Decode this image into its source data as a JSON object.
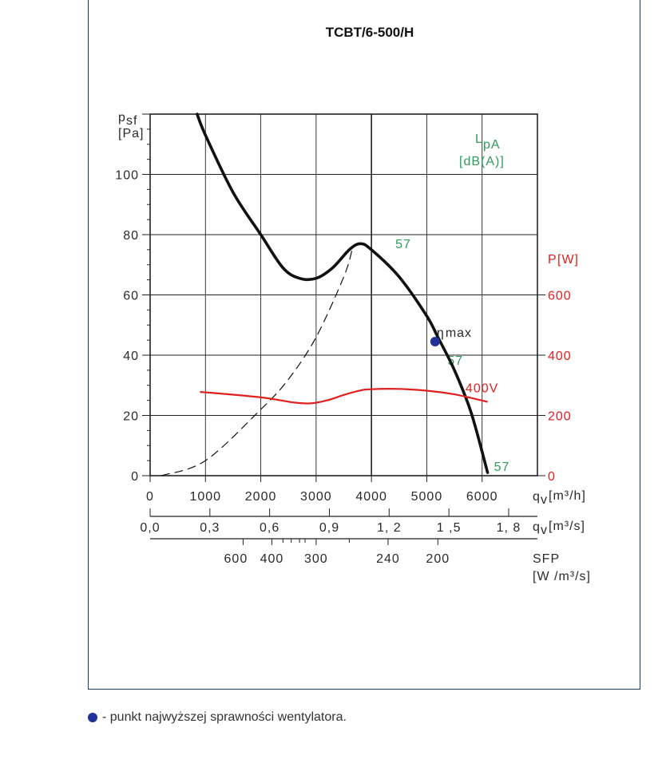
{
  "chart_data": {
    "type": "line",
    "title": "TCBT/6-500/H",
    "y_label_main": "p",
    "y_label_sub": "sf",
    "y_unit": "[Pa]",
    "x_label_main": "q",
    "x_label_sub": "v",
    "x_unit_m3h": "[m³/h]",
    "x_unit_m3s": "[m³/s]",
    "x_range": [
      0,
      7000
    ],
    "y_range": [
      0,
      120
    ],
    "y_ticks": [
      "0",
      "20",
      "40",
      "60",
      "80",
      "100"
    ],
    "x_ticks_m3h": [
      "0",
      "1000",
      "2000",
      "3000",
      "4000",
      "5000",
      "6000"
    ],
    "x_ticks_m3s": [
      "0,0",
      "0,3",
      "0,6",
      "0,9",
      "1, 2",
      "1 ,5",
      "1, 8"
    ],
    "sfp_ticks": [
      "600",
      "400",
      "300",
      "240",
      "200"
    ],
    "sfp_label": "SFP",
    "sfp_unit": "[W /m³/s]",
    "power_axis_label": "P",
    "power_axis_unit": "[W]",
    "power_ticks": [
      "0",
      "200",
      "400",
      "600"
    ],
    "lpa_label": "L",
    "lpa_sub": "pA",
    "lpa_unit": "[dB(A)]",
    "series": [
      {
        "kind": "pressure",
        "values": [
          [
            850,
            120
          ],
          [
            1000,
            113
          ],
          [
            1500,
            94
          ],
          [
            2000,
            80
          ],
          [
            2400,
            69
          ],
          [
            2700,
            65.5
          ],
          [
            3000,
            65.5
          ],
          [
            3300,
            69
          ],
          [
            3600,
            75
          ],
          [
            3800,
            77
          ],
          [
            4000,
            75
          ],
          [
            4500,
            66
          ],
          [
            5000,
            53
          ],
          [
            5200,
            46
          ],
          [
            5500,
            35
          ],
          [
            5800,
            21
          ],
          [
            6100,
            1
          ]
        ]
      },
      {
        "kind": "system-curve",
        "values": [
          [
            200,
            0
          ],
          [
            1000,
            5
          ],
          [
            2000,
            22
          ],
          [
            2500,
            32
          ],
          [
            3000,
            46
          ],
          [
            3500,
            66
          ],
          [
            3650,
            75
          ]
        ]
      },
      {
        "kind": "power",
        "name": "400V",
        "values": [
          [
            900,
            278
          ],
          [
            1500,
            269
          ],
          [
            2000,
            260
          ],
          [
            2300,
            252
          ],
          [
            2600,
            243
          ],
          [
            2900,
            240
          ],
          [
            3200,
            250
          ],
          [
            3500,
            268
          ],
          [
            3800,
            283
          ],
          [
            4000,
            287
          ],
          [
            4500,
            288
          ],
          [
            5000,
            282
          ],
          [
            5500,
            270
          ],
          [
            6100,
            245
          ]
        ]
      }
    ],
    "lpa_labels": [
      {
        "x": 4000,
        "y": 75,
        "text": "57"
      },
      {
        "x": 5200,
        "y": 41,
        "text": "57"
      },
      {
        "x": 6100,
        "y": 1,
        "text": "57"
      }
    ],
    "eta_max": {
      "x": 5150,
      "y": 44.5,
      "label": "η",
      "sub": "max"
    },
    "power_label_text": "400V"
  },
  "legend": {
    "text": "- punkt najwyższej sprawności wentylatora."
  }
}
